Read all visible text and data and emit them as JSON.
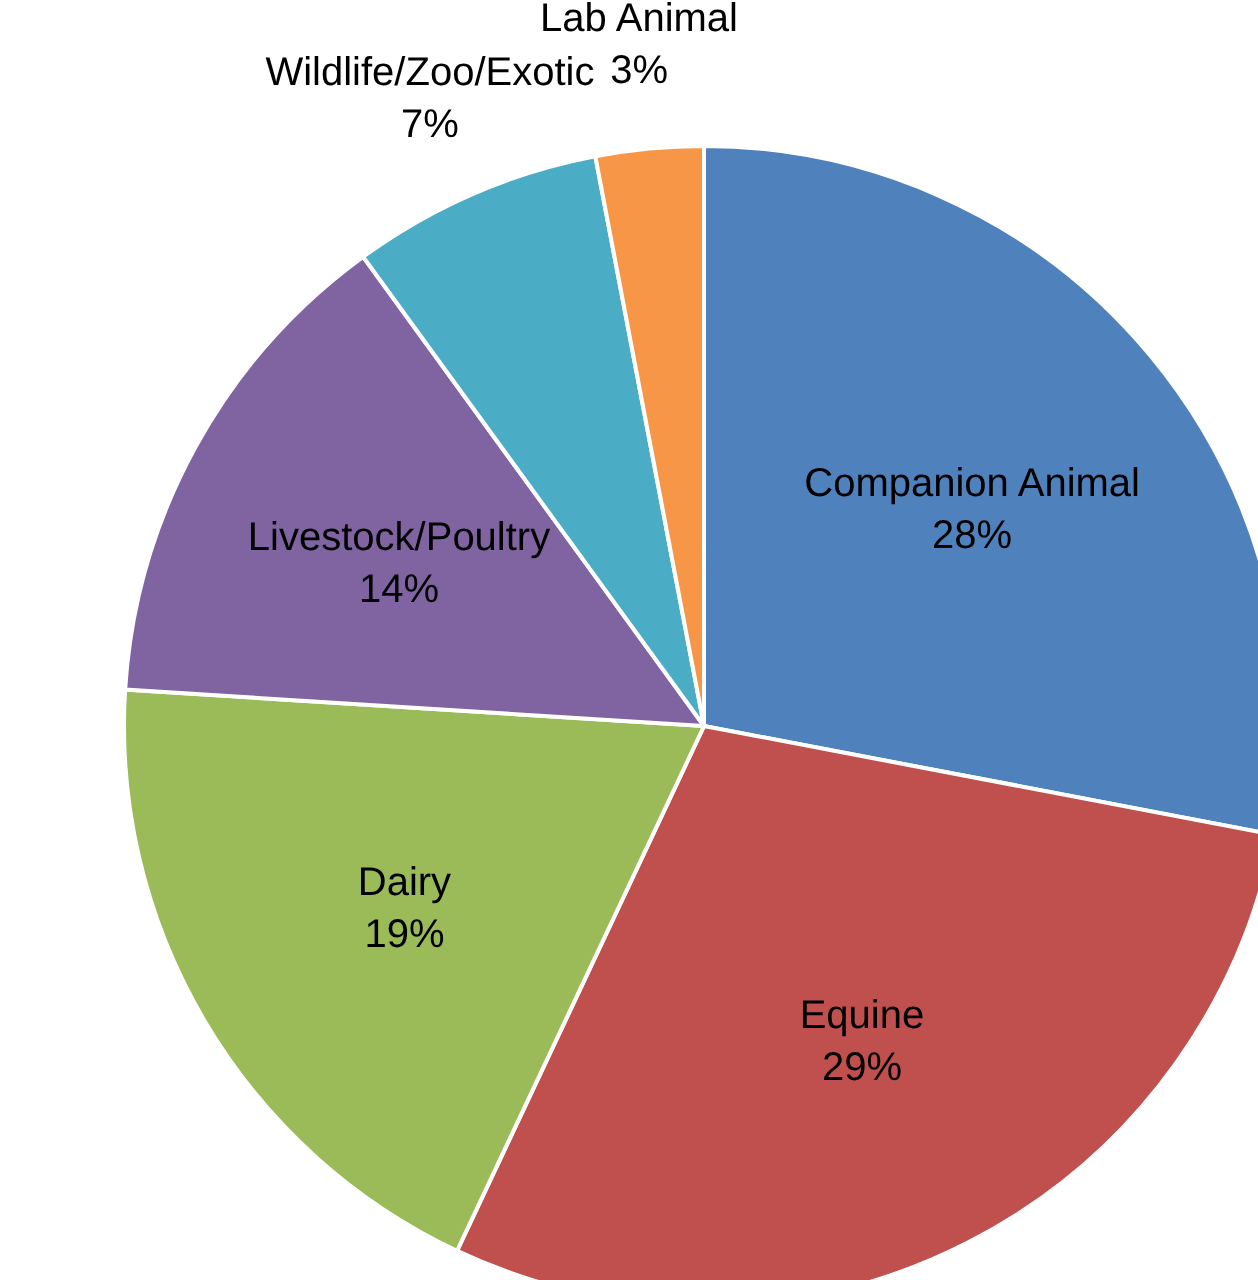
{
  "chart_data": {
    "type": "pie",
    "categories": [
      "Companion Animal",
      "Equine",
      "Dairy",
      "Livestock/Poultry",
      "Wildlife/Zoo/Exotic",
      "Lab Animal"
    ],
    "values": [
      28,
      29,
      19,
      14,
      7,
      3
    ],
    "value_labels": [
      "28%",
      "29%",
      "19%",
      "14%",
      "7%",
      "3%"
    ],
    "colors": [
      "#4f81bd",
      "#c0504d",
      "#9bbb59",
      "#8064a2",
      "#4bacc6",
      "#f79646"
    ]
  }
}
